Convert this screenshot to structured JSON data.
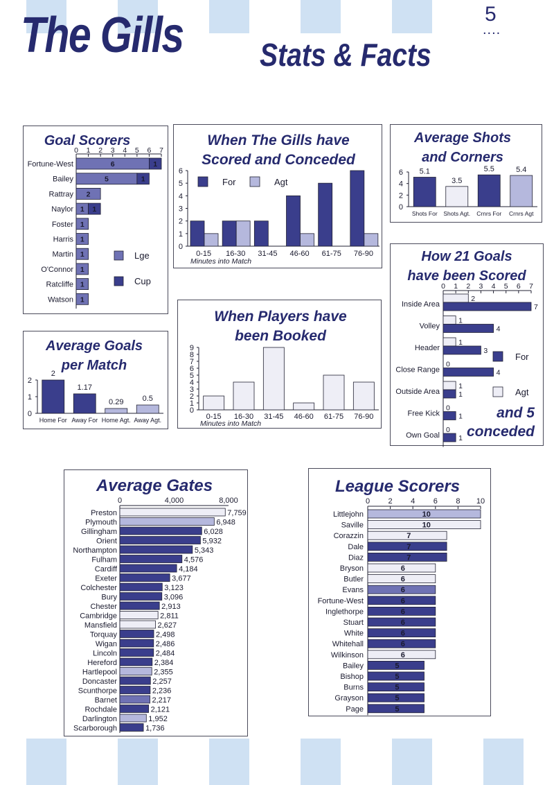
{
  "header": {
    "title": "The Gills",
    "subtitle": "Stats & Facts",
    "page_number": "5"
  },
  "colors": {
    "dark": "#3a3e8c",
    "mid": "#6f72b4",
    "light": "#b5b8dd",
    "pale": "#eeeef6",
    "ink": "#262a6e",
    "stripe": "#cfe1f3"
  },
  "chart_data": [
    {
      "id": "goal-scorers",
      "type": "bar",
      "orientation": "horizontal",
      "stacked": true,
      "title": "Goal Scorers",
      "categories": [
        "Fortune-West",
        "Bailey",
        "Rattray",
        "Naylor",
        "Foster",
        "Harris",
        "Martin",
        "O'Connor",
        "Ratcliffe",
        "Watson"
      ],
      "series": [
        {
          "name": "Lge",
          "values": [
            6,
            5,
            2,
            1,
            1,
            1,
            1,
            1,
            1,
            1
          ]
        },
        {
          "name": "Cup",
          "values": [
            1,
            1,
            0,
            1,
            0,
            0,
            0,
            0,
            0,
            0
          ]
        }
      ],
      "xlim": [
        0,
        7
      ],
      "xticks": [
        "0",
        "1",
        "2",
        "3",
        "4",
        "5",
        "6",
        "7"
      ],
      "legend": "right"
    },
    {
      "id": "when-scored",
      "type": "bar",
      "title": "When The Gills have Scored and Conceded",
      "xlabel": "Minutes into Match",
      "categories": [
        "0-15",
        "16-30",
        "31-45",
        "46-60",
        "61-75",
        "76-90"
      ],
      "series": [
        {
          "name": "For",
          "values": [
            2,
            2,
            2,
            4,
            5,
            6
          ]
        },
        {
          "name": "Agt",
          "values": [
            1,
            2,
            0,
            1,
            0,
            1
          ]
        }
      ],
      "ylim": [
        0,
        6
      ],
      "yticks": [
        "0",
        "1",
        "2",
        "3",
        "4",
        "5",
        "6"
      ],
      "legend": "top"
    },
    {
      "id": "avg-shots",
      "type": "bar",
      "title": "Average Shots and Corners",
      "categories": [
        "Shots For",
        "Shots Agt.",
        "Crnrs For",
        "Crnrs Agt"
      ],
      "values": [
        5.1,
        3.5,
        5.5,
        5.4
      ],
      "labels": [
        "5.1",
        "3.5",
        "5.5",
        "5.4"
      ],
      "ylim": [
        0,
        6
      ],
      "yticks": [
        "0",
        "2",
        "4",
        "6"
      ]
    },
    {
      "id": "how-goals",
      "type": "bar",
      "orientation": "horizontal",
      "title": "How 21 Goals have been Scored",
      "annotation": "and 5 conceded",
      "categories": [
        "Inside Area",
        "Volley",
        "Header",
        "Close Range",
        "Outside Area",
        "Free Kick",
        "Own Goal"
      ],
      "series": [
        {
          "name": "For",
          "values": [
            7,
            4,
            3,
            4,
            1,
            1,
            1
          ]
        },
        {
          "name": "Agt",
          "values": [
            2,
            1,
            1,
            0,
            1,
            0,
            0
          ]
        }
      ],
      "agt_labels": [
        "2",
        "1",
        "1",
        "0",
        "1",
        "0",
        "0"
      ],
      "for_labels": [
        "7",
        "4",
        "3",
        "4",
        "1",
        "1",
        "1"
      ],
      "xlim": [
        0,
        7
      ],
      "xticks": [
        "0",
        "1",
        "2",
        "3",
        "4",
        "5",
        "6",
        "7"
      ],
      "legend": "right"
    },
    {
      "id": "avg-goals",
      "type": "bar",
      "title": "Average Goals per Match",
      "categories": [
        "Home For",
        "Away For",
        "Home Agt.",
        "Away Agt."
      ],
      "values": [
        2,
        1.17,
        0.29,
        0.5
      ],
      "labels": [
        "2",
        "1.17",
        "0.29",
        "0.5"
      ],
      "ylim": [
        0,
        2
      ],
      "yticks": [
        "0",
        "1",
        "2"
      ]
    },
    {
      "id": "booked",
      "type": "bar",
      "title": "When Players have been Booked",
      "xlabel": "Minutes into Match",
      "categories": [
        "0-15",
        "16-30",
        "31-45",
        "46-60",
        "61-75",
        "76-90"
      ],
      "values": [
        2,
        4,
        9,
        1,
        5,
        4
      ],
      "ylim": [
        0,
        9
      ],
      "yticks": [
        "0",
        "1",
        "2",
        "3",
        "4",
        "5",
        "6",
        "7",
        "8",
        "9"
      ]
    },
    {
      "id": "avg-gates",
      "type": "bar",
      "orientation": "horizontal",
      "title": "Average Gates",
      "categories": [
        "Preston",
        "Plymouth",
        "Gillingham",
        "Orient",
        "Northampton",
        "Fulham",
        "Cardiff",
        "Exeter",
        "Colchester",
        "Bury",
        "Chester",
        "Cambridge",
        "Mansfield",
        "Torquay",
        "Wigan",
        "Lincoln",
        "Hereford",
        "Hartlepool",
        "Doncaster",
        "Scunthorpe",
        "Barnet",
        "Rochdale",
        "Darlington",
        "Scarborough"
      ],
      "values": [
        7759,
        6948,
        6028,
        5932,
        5343,
        4576,
        4184,
        3677,
        3123,
        3096,
        2913,
        2811,
        2627,
        2498,
        2486,
        2484,
        2384,
        2355,
        2257,
        2236,
        2217,
        2121,
        1952,
        1736
      ],
      "labels": [
        "7,759",
        "6,948",
        "6,028",
        "5,932",
        "5,343",
        "4,576",
        "4,184",
        "3,677",
        "3,123",
        "3,096",
        "2,913",
        "2,811",
        "2,627",
        "2,498",
        "2,486",
        "2,484",
        "2,384",
        "2,355",
        "2,257",
        "2,236",
        "2,217",
        "2,121",
        "1,952",
        "1,736"
      ],
      "bar_tones": [
        "pale",
        "light",
        "dark",
        "dark",
        "dark",
        "dark",
        "dark",
        "dark",
        "dark",
        "dark",
        "dark",
        "pale",
        "pale",
        "dark",
        "dark",
        "dark",
        "dark",
        "light",
        "dark",
        "dark",
        "mid",
        "dark",
        "light",
        "dark"
      ],
      "xlim": [
        0,
        8000
      ],
      "xticks": [
        "0",
        "4,000",
        "8,000"
      ]
    },
    {
      "id": "league-scorers",
      "type": "bar",
      "orientation": "horizontal",
      "title": "League Scorers",
      "categories": [
        "Littlejohn",
        "Saville",
        "Corazzin",
        "Dale",
        "Diaz",
        "Bryson",
        "Butler",
        "Evans",
        "Fortune-West",
        "Inglethorpe",
        "Stuart",
        "White",
        "Whitehall",
        "Wilkinson",
        "Bailey",
        "Bishop",
        "Burns",
        "Grayson",
        "Page"
      ],
      "values": [
        10,
        10,
        7,
        7,
        7,
        6,
        6,
        6,
        6,
        6,
        6,
        6,
        6,
        6,
        5,
        5,
        5,
        5,
        5
      ],
      "labels": [
        "10",
        "10",
        "7",
        "7",
        "7",
        "6",
        "6",
        "6",
        "6",
        "6",
        "6",
        "6",
        "6",
        "6",
        "5",
        "5",
        "5",
        "5",
        "5"
      ],
      "bar_tones": [
        "light",
        "pale",
        "pale",
        "dark",
        "dark",
        "pale",
        "pale",
        "mid",
        "dark",
        "dark",
        "dark",
        "dark",
        "dark",
        "pale",
        "dark",
        "dark",
        "dark",
        "dark",
        "dark"
      ],
      "xlim": [
        0,
        10
      ],
      "xticks": [
        "0",
        "2",
        "4",
        "6",
        "8",
        "10"
      ]
    }
  ]
}
